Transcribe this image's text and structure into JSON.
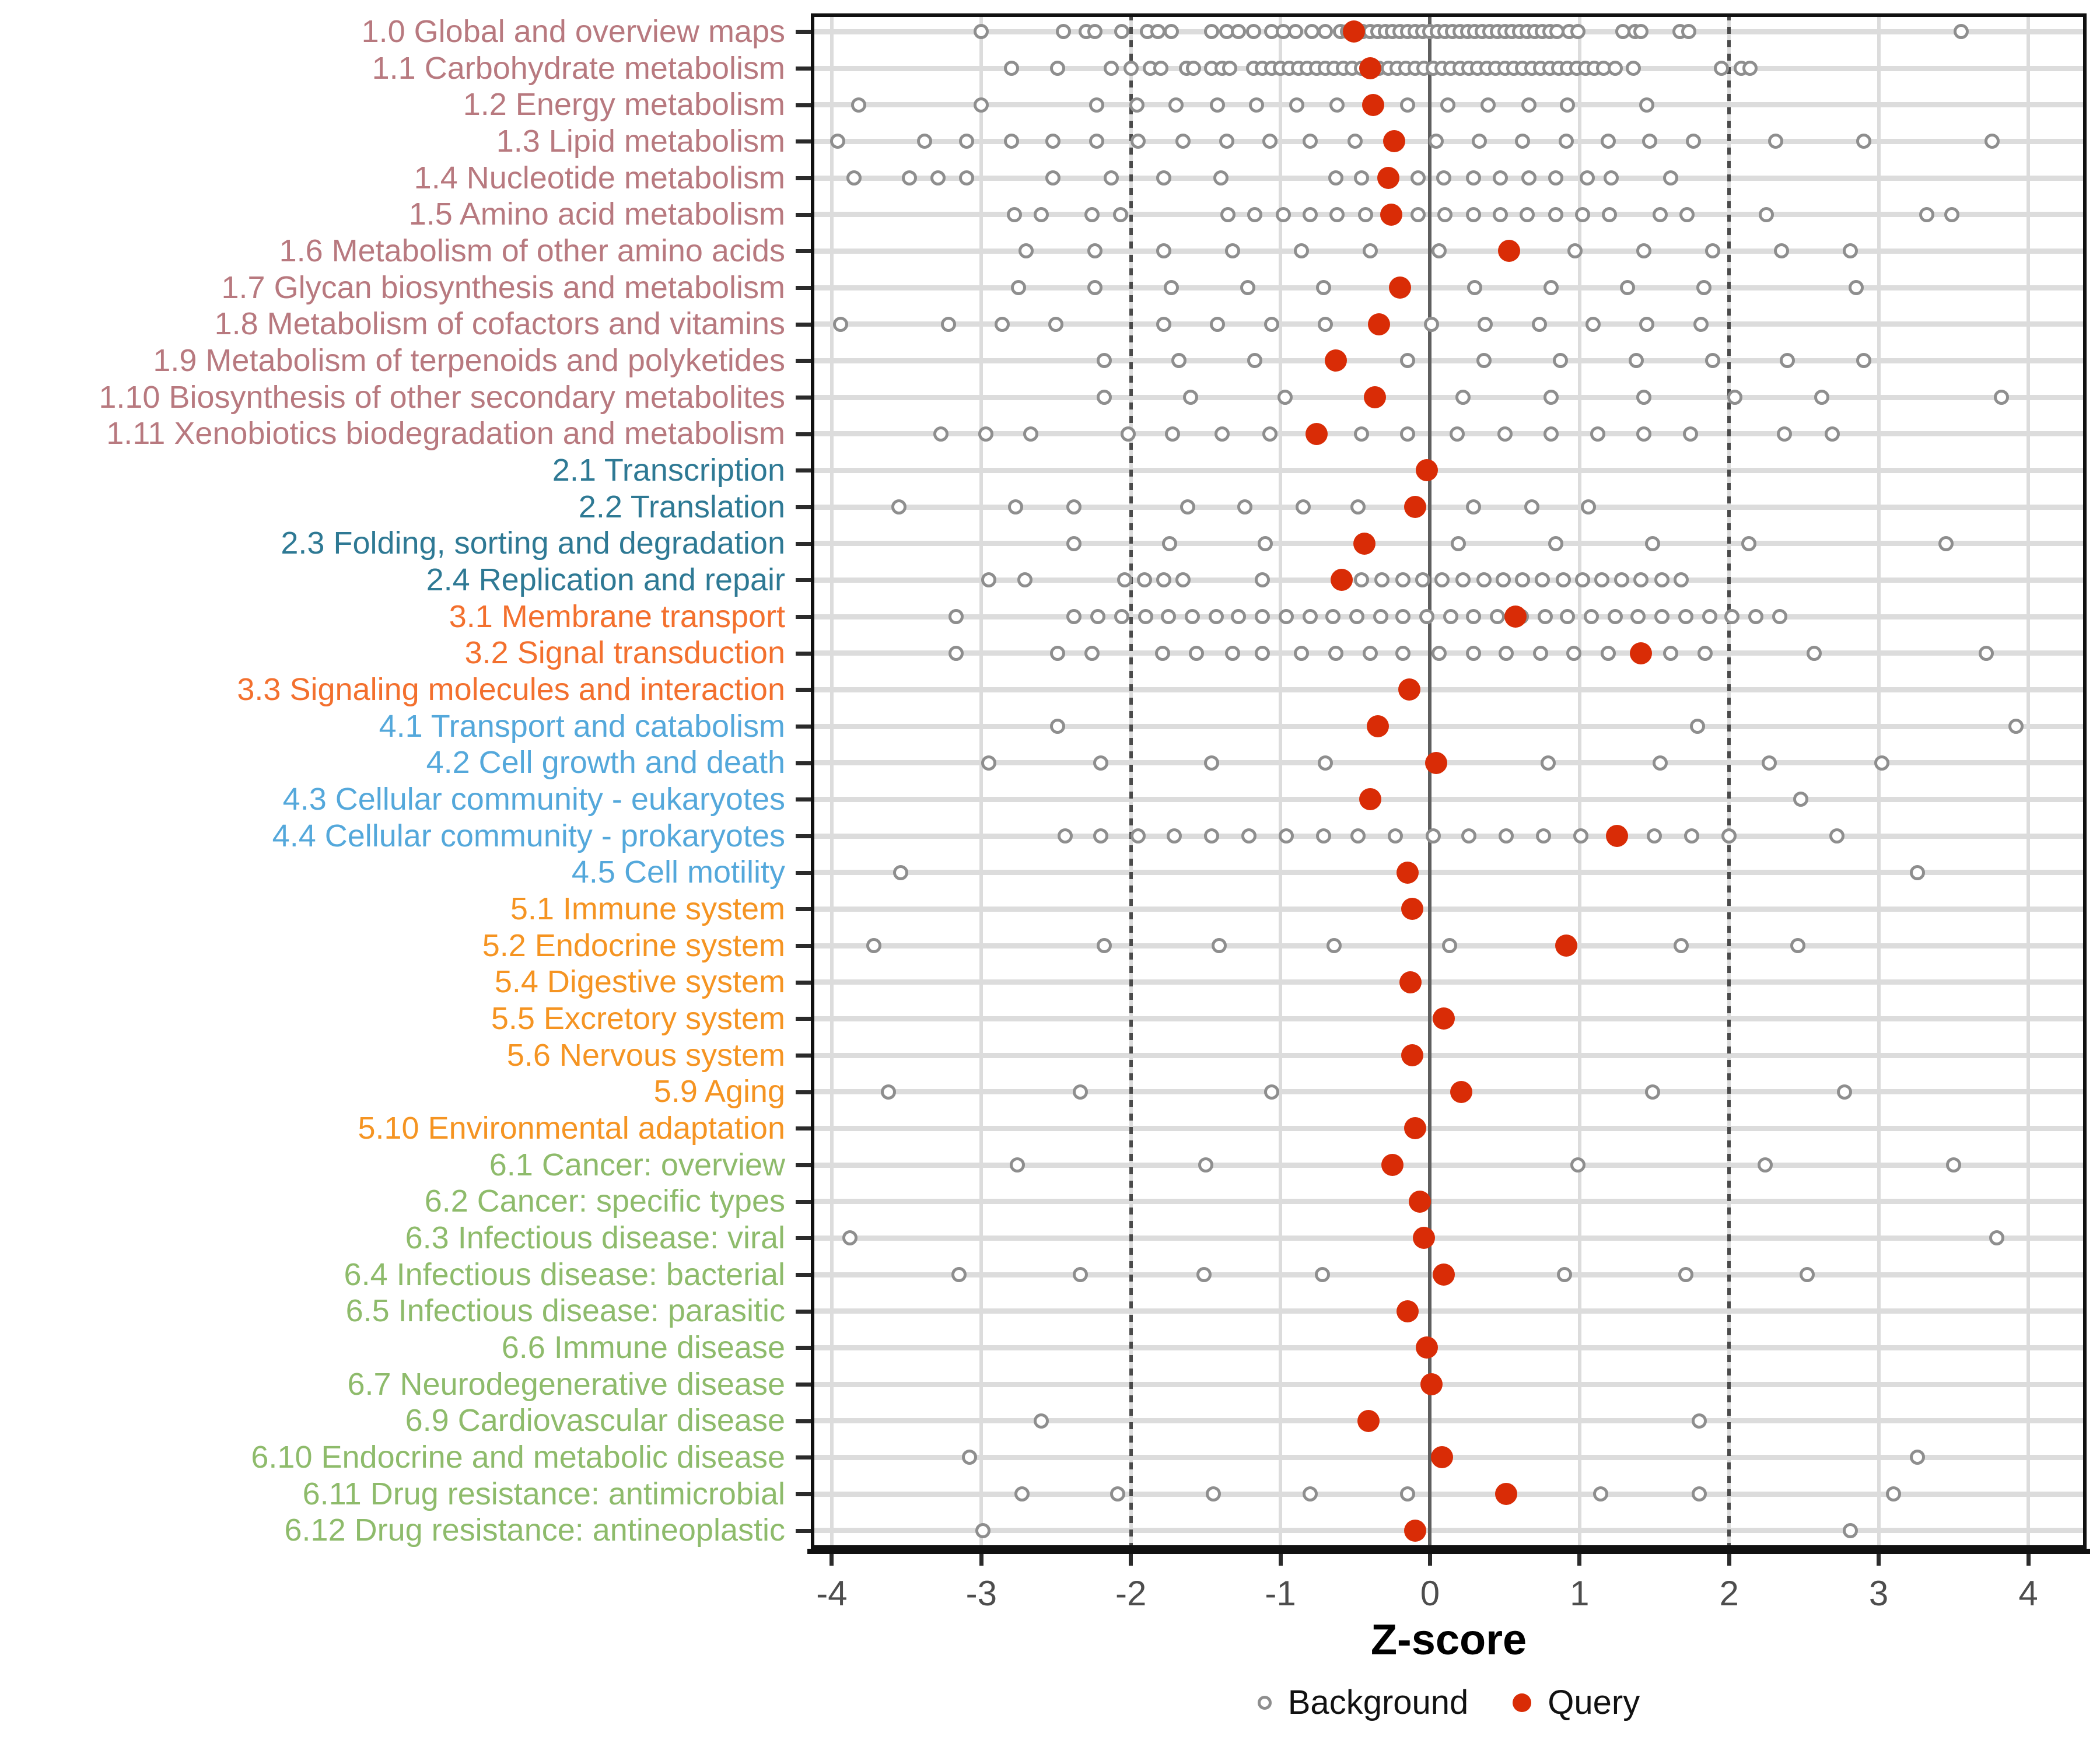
{
  "colors": {
    "metabolism": "#B8797F",
    "genetic_information_processing": "#2E7994",
    "environmental_information_processing": "#F3702E",
    "cellular_processes": "#54A8DB",
    "organismal_systems": "#F59422",
    "human_diseases": "#8EBB6B",
    "query": "#D92C06",
    "background_stroke": "#8E8E8E",
    "grid": "#DCDCDC",
    "zero_line": "#5F5F5F",
    "threshold_line": "#4A4A4A",
    "tick_label": "#4D4D4D",
    "axis_title": "#000000"
  },
  "chart_data": {
    "type": "scatter",
    "title": "",
    "xlabel": "Z-score",
    "ylabel": "",
    "x_ticks": [
      -4,
      -3,
      -2,
      -1,
      0,
      1,
      2,
      3,
      4
    ],
    "xlim": [
      -4.14,
      4.39
    ],
    "grid": true,
    "legend_position": "bottom",
    "reference_lines": {
      "zero": 0,
      "dotted": [
        -2,
        2
      ]
    },
    "legend": [
      {
        "label": "Background",
        "style": "open"
      },
      {
        "label": "Query",
        "style": "filled"
      }
    ],
    "rows": [
      {
        "label": "1.0 Global and overview maps",
        "group": "metabolism",
        "query": -0.51,
        "background": [
          -3.0,
          -2.45,
          -2.3,
          -2.24,
          -2.06,
          -1.89,
          -1.82,
          -1.73,
          -1.46,
          -1.36,
          -1.28,
          -1.18,
          -1.06,
          -0.98,
          -0.9,
          -0.79,
          -0.7,
          -0.6,
          -0.55,
          -0.5,
          -0.45,
          -0.4,
          -0.35,
          -0.3,
          -0.25,
          -0.2,
          -0.15,
          -0.1,
          -0.05,
          0,
          0.05,
          0.1,
          0.15,
          0.2,
          0.25,
          0.3,
          0.35,
          0.4,
          0.45,
          0.5,
          0.55,
          0.6,
          0.65,
          0.7,
          0.75,
          0.8,
          0.85,
          0.93,
          0.99,
          1.29,
          1.37,
          1.41,
          1.67,
          1.73,
          3.55
        ]
      },
      {
        "label": "1.1 Carbohydrate metabolism",
        "group": "metabolism",
        "query": -0.4,
        "background": [
          -2.8,
          -2.49,
          -2.13,
          -2.0,
          -1.87,
          -1.8,
          -1.63,
          -1.58,
          -1.46,
          -1.39,
          -1.34,
          -1.18,
          -1.12,
          -1.06,
          -1.0,
          -0.94,
          -0.88,
          -0.82,
          -0.76,
          -0.7,
          -0.64,
          -0.58,
          -0.52,
          -0.46,
          -0.4,
          -0.34,
          -0.28,
          -0.22,
          -0.16,
          -0.1,
          -0.04,
          0.02,
          0.08,
          0.14,
          0.2,
          0.26,
          0.32,
          0.38,
          0.44,
          0.5,
          0.56,
          0.62,
          0.68,
          0.74,
          0.8,
          0.86,
          0.92,
          0.98,
          1.04,
          1.1,
          1.16,
          1.24,
          1.36,
          1.95,
          2.08,
          2.14
        ]
      },
      {
        "label": "1.2 Energy metabolism",
        "group": "metabolism",
        "query": -0.38,
        "background": [
          -3.82,
          -3.0,
          -2.23,
          -1.96,
          -1.7,
          -1.42,
          -1.16,
          -0.89,
          -0.62,
          -0.15,
          0.12,
          0.39,
          0.66,
          0.92,
          1.45
        ]
      },
      {
        "label": "1.3 Lipid metabolism",
        "group": "metabolism",
        "query": -0.24,
        "background": [
          -3.96,
          -3.38,
          -3.1,
          -2.8,
          -2.52,
          -2.23,
          -1.95,
          -1.65,
          -1.36,
          -1.07,
          -0.8,
          -0.5,
          0.04,
          0.33,
          0.62,
          0.91,
          1.19,
          1.47,
          1.76,
          2.31,
          2.9,
          3.76
        ]
      },
      {
        "label": "1.4 Nucleotide metabolism",
        "group": "metabolism",
        "query": -0.28,
        "background": [
          -3.85,
          -3.48,
          -3.29,
          -3.1,
          -2.52,
          -2.13,
          -1.78,
          -1.4,
          -0.63,
          -0.46,
          -0.08,
          0.09,
          0.29,
          0.47,
          0.66,
          0.84,
          1.05,
          1.21,
          1.61
        ]
      },
      {
        "label": "1.5 Amino acid metabolism",
        "group": "metabolism",
        "query": -0.26,
        "background": [
          -2.78,
          -2.6,
          -2.26,
          -2.07,
          -1.35,
          -1.17,
          -0.98,
          -0.8,
          -0.62,
          -0.43,
          -0.08,
          0.1,
          0.29,
          0.47,
          0.65,
          0.84,
          1.02,
          1.2,
          1.54,
          1.72,
          2.25,
          3.32,
          3.49
        ]
      },
      {
        "label": "1.6 Metabolism of other amino acids",
        "group": "metabolism",
        "query": 0.53,
        "background": [
          -2.7,
          -2.24,
          -1.78,
          -1.32,
          -0.86,
          -0.4,
          0.06,
          0.97,
          1.43,
          1.89,
          2.35,
          2.81
        ]
      },
      {
        "label": "1.7 Glycan biosynthesis and metabolism",
        "group": "metabolism",
        "query": -0.2,
        "background": [
          -2.75,
          -2.24,
          -1.73,
          -1.22,
          -0.71,
          0.3,
          0.81,
          1.32,
          1.83,
          2.85
        ]
      },
      {
        "label": "1.8 Metabolism of cofactors and vitamins",
        "group": "metabolism",
        "query": -0.34,
        "background": [
          -3.94,
          -3.22,
          -2.86,
          -2.5,
          -1.78,
          -1.42,
          -1.06,
          -0.7,
          0.01,
          0.37,
          0.73,
          1.09,
          1.45,
          1.81
        ]
      },
      {
        "label": "1.9 Metabolism of terpenoids and polyketides",
        "group": "metabolism",
        "query": -0.63,
        "background": [
          -2.18,
          -1.68,
          -1.17,
          -0.15,
          0.36,
          0.87,
          1.38,
          1.89,
          2.39,
          2.9
        ]
      },
      {
        "label": "1.10 Biosynthesis of other secondary metabolites",
        "group": "metabolism",
        "query": -0.37,
        "background": [
          -2.18,
          -1.6,
          -0.97,
          0.22,
          0.81,
          1.43,
          2.04,
          2.62,
          3.82
        ]
      },
      {
        "label": "1.11 Xenobiotics biodegradation and metabolism",
        "group": "metabolism",
        "query": -0.76,
        "background": [
          -3.27,
          -2.97,
          -2.67,
          -2.02,
          -1.72,
          -1.39,
          -1.07,
          -0.46,
          -0.15,
          0.18,
          0.5,
          0.81,
          1.12,
          1.43,
          1.74,
          2.37,
          2.69
        ]
      },
      {
        "label": "2.1 Transcription",
        "group": "genetic_information_processing",
        "query": -0.02,
        "background": []
      },
      {
        "label": "2.2 Translation",
        "group": "genetic_information_processing",
        "query": -0.1,
        "background": [
          -3.55,
          -2.77,
          -2.38,
          -1.62,
          -1.24,
          -0.85,
          -0.48,
          0.29,
          0.68,
          1.06
        ]
      },
      {
        "label": "2.3 Folding, sorting and degradation",
        "group": "genetic_information_processing",
        "query": -0.44,
        "background": [
          -2.38,
          -1.74,
          -1.1,
          0.19,
          0.84,
          1.49,
          2.13,
          3.45
        ]
      },
      {
        "label": "2.4 Replication and repair",
        "group": "genetic_information_processing",
        "query": -0.59,
        "background": [
          -2.95,
          -2.71,
          -2.04,
          -1.91,
          -1.78,
          -1.65,
          -1.12,
          -0.46,
          -0.32,
          -0.18,
          -0.05,
          0.08,
          0.22,
          0.36,
          0.49,
          0.62,
          0.75,
          0.89,
          1.02,
          1.15,
          1.28,
          1.41,
          1.55,
          1.68
        ]
      },
      {
        "label": "3.1 Membrane transport",
        "group": "environmental_information_processing",
        "query": 0.57,
        "background": [
          -3.17,
          -2.38,
          -2.22,
          -2.06,
          -1.9,
          -1.75,
          -1.59,
          -1.43,
          -1.28,
          -1.12,
          -0.96,
          -0.8,
          -0.65,
          -0.49,
          -0.33,
          -0.18,
          -0.02,
          0.14,
          0.29,
          0.45,
          0.61,
          0.77,
          0.92,
          1.08,
          1.24,
          1.39,
          1.55,
          1.71,
          1.87,
          2.02,
          2.18,
          2.34
        ]
      },
      {
        "label": "3.2 Signal transduction",
        "group": "environmental_information_processing",
        "query": 1.41,
        "background": [
          -3.17,
          -2.49,
          -2.26,
          -1.79,
          -1.56,
          -1.32,
          -1.12,
          -0.86,
          -0.63,
          -0.4,
          -0.18,
          0.06,
          0.29,
          0.51,
          0.74,
          0.96,
          1.19,
          1.61,
          1.84,
          2.57,
          3.72
        ]
      },
      {
        "label": "3.3 Signaling molecules and interaction",
        "group": "environmental_information_processing",
        "query": -0.14,
        "background": []
      },
      {
        "label": "4.1 Transport and catabolism",
        "group": "cellular_processes",
        "query": -0.35,
        "background": [
          -2.49,
          1.79,
          3.92
        ]
      },
      {
        "label": "4.2 Cell growth and death",
        "group": "cellular_processes",
        "query": 0.04,
        "background": [
          -2.95,
          -2.2,
          -1.46,
          -0.7,
          0.79,
          1.54,
          2.27,
          3.02
        ]
      },
      {
        "label": "4.3 Cellular community - eukaryotes",
        "group": "cellular_processes",
        "query": -0.4,
        "background": [
          2.48
        ]
      },
      {
        "label": "4.4 Cellular community - prokaryotes",
        "group": "cellular_processes",
        "query": 1.25,
        "background": [
          -2.44,
          -2.2,
          -1.95,
          -1.71,
          -1.46,
          -1.21,
          -0.96,
          -0.71,
          -0.48,
          -0.23,
          0.02,
          0.26,
          0.51,
          0.76,
          1.01,
          1.5,
          1.75,
          2.0,
          2.72
        ]
      },
      {
        "label": "4.5 Cell motility",
        "group": "cellular_processes",
        "query": -0.15,
        "background": [
          -3.54,
          3.26
        ]
      },
      {
        "label": "5.1 Immune system",
        "group": "organismal_systems",
        "query": -0.12,
        "background": []
      },
      {
        "label": "5.2 Endocrine system",
        "group": "organismal_systems",
        "query": 0.91,
        "background": [
          -3.72,
          -2.18,
          -1.41,
          -0.64,
          0.13,
          1.68,
          2.46
        ]
      },
      {
        "label": "5.4 Digestive system",
        "group": "organismal_systems",
        "query": -0.13,
        "background": []
      },
      {
        "label": "5.5 Excretory system",
        "group": "organismal_systems",
        "query": 0.09,
        "background": []
      },
      {
        "label": "5.6 Nervous system",
        "group": "organismal_systems",
        "query": -0.12,
        "background": []
      },
      {
        "label": "5.9 Aging",
        "group": "organismal_systems",
        "query": 0.21,
        "background": [
          -3.62,
          -2.34,
          -1.06,
          1.49,
          2.77
        ]
      },
      {
        "label": "5.10 Environmental adaptation",
        "group": "organismal_systems",
        "query": -0.1,
        "background": []
      },
      {
        "label": "6.1 Cancer: overview",
        "group": "human_diseases",
        "query": -0.25,
        "background": [
          -2.76,
          -1.5,
          0.99,
          2.24,
          3.5
        ]
      },
      {
        "label": "6.2 Cancer: specific types",
        "group": "human_diseases",
        "query": -0.07,
        "background": []
      },
      {
        "label": "6.3 Infectious disease: viral",
        "group": "human_diseases",
        "query": -0.04,
        "background": [
          -3.88,
          3.79
        ]
      },
      {
        "label": "6.4 Infectious disease: bacterial",
        "group": "human_diseases",
        "query": 0.09,
        "background": [
          -3.15,
          -2.34,
          -1.51,
          -0.72,
          0.9,
          1.71,
          2.52
        ]
      },
      {
        "label": "6.5 Infectious disease: parasitic",
        "group": "human_diseases",
        "query": -0.15,
        "background": []
      },
      {
        "label": "6.6 Immune disease",
        "group": "human_diseases",
        "query": -0.02,
        "background": []
      },
      {
        "label": "6.7 Neurodegenerative disease",
        "group": "human_diseases",
        "query": 0.01,
        "background": []
      },
      {
        "label": "6.9 Cardiovascular disease",
        "group": "human_diseases",
        "query": -0.41,
        "background": [
          -2.6,
          1.8
        ]
      },
      {
        "label": "6.10 Endocrine and metabolic disease",
        "group": "human_diseases",
        "query": 0.08,
        "background": [
          -3.08,
          3.26
        ]
      },
      {
        "label": "6.11 Drug resistance: antimicrobial",
        "group": "human_diseases",
        "query": 0.51,
        "background": [
          -2.73,
          -2.09,
          -1.45,
          -0.8,
          -0.15,
          1.14,
          1.8,
          3.1
        ]
      },
      {
        "label": "6.12 Drug resistance: antineoplastic",
        "group": "human_diseases",
        "query": -0.1,
        "background": [
          -2.99,
          2.81
        ]
      }
    ]
  }
}
